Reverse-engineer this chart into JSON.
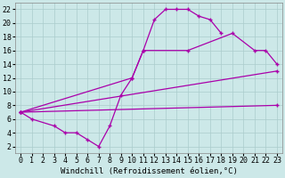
{
  "background_color": "#cce8e8",
  "grid_color": "#aacccc",
  "line_color": "#aa00aa",
  "marker": "+",
  "xlabel": "Windchill (Refroidissement éolien,°C)",
  "xlabel_fontsize": 6.5,
  "tick_fontsize": 6,
  "xlim": [
    -0.5,
    23.5
  ],
  "ylim": [
    1,
    23
  ],
  "xticks": [
    0,
    1,
    2,
    3,
    4,
    5,
    6,
    7,
    8,
    9,
    10,
    11,
    12,
    13,
    14,
    15,
    16,
    17,
    18,
    19,
    20,
    21,
    22,
    23
  ],
  "yticks": [
    2,
    4,
    6,
    8,
    10,
    12,
    14,
    16,
    18,
    20,
    22
  ],
  "c1x": [
    0,
    1,
    3,
    4,
    5,
    6,
    7,
    8,
    9,
    10,
    11,
    12,
    13,
    14,
    15,
    16,
    17,
    18
  ],
  "c1y": [
    7,
    6,
    5,
    4,
    4,
    3,
    2,
    5,
    9.5,
    12,
    16,
    20.5,
    22,
    22,
    22,
    21,
    20.5,
    18.5
  ],
  "c2x": [
    0,
    10,
    11,
    15,
    19,
    21,
    22,
    23
  ],
  "c2y": [
    7,
    12,
    16,
    16,
    18.5,
    16,
    16,
    14
  ],
  "c3x": [
    0,
    23
  ],
  "c3y": [
    7,
    13
  ],
  "c4x": [
    0,
    23
  ],
  "c4y": [
    7,
    8
  ]
}
